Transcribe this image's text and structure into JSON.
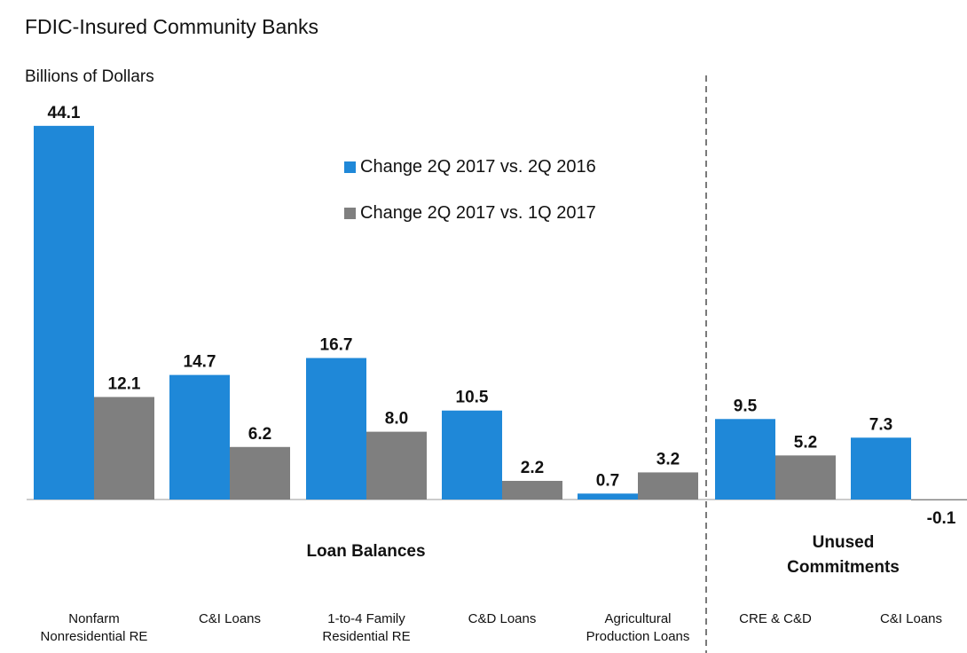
{
  "chart_data": {
    "type": "bar",
    "title": "FDIC-Insured Community Banks",
    "ylabel": "Billions of Dollars",
    "categories": [
      [
        "Nonfarm",
        "Nonresidential RE"
      ],
      [
        "C&I Loans"
      ],
      [
        "1-to-4 Family",
        "Residential RE"
      ],
      [
        "C&D Loans"
      ],
      [
        "Agricultural",
        "Production Loans"
      ],
      [
        "CRE & C&D"
      ],
      [
        "C&I Loans"
      ]
    ],
    "groups": [
      {
        "label": [
          "Loan Balances"
        ],
        "categories": [
          0,
          1,
          2,
          3,
          4
        ]
      },
      {
        "label": [
          "Unused",
          "Commitments"
        ],
        "categories": [
          5,
          6
        ]
      }
    ],
    "series": [
      {
        "name": "Change 2Q 2017 vs. 2Q 2016",
        "color": "#1f88d8",
        "values": [
          44.1,
          14.7,
          16.7,
          10.5,
          0.7,
          9.5,
          7.3
        ],
        "labels": [
          "44.1",
          "14.7",
          "16.7",
          "10.5",
          "0.7",
          "9.5",
          "7.3"
        ]
      },
      {
        "name": "Change 2Q 2017 vs. 1Q 2017",
        "color": "#7f7f7f",
        "values": [
          12.1,
          6.2,
          8.0,
          2.2,
          3.2,
          5.2,
          -0.1
        ],
        "labels": [
          "12.1",
          "6.2",
          "8.0",
          "2.2",
          "3.2",
          "5.2",
          "-0.1"
        ]
      }
    ],
    "ylim": [
      -0.1,
      44.1
    ],
    "legend_position": "top-center",
    "grid": false
  }
}
